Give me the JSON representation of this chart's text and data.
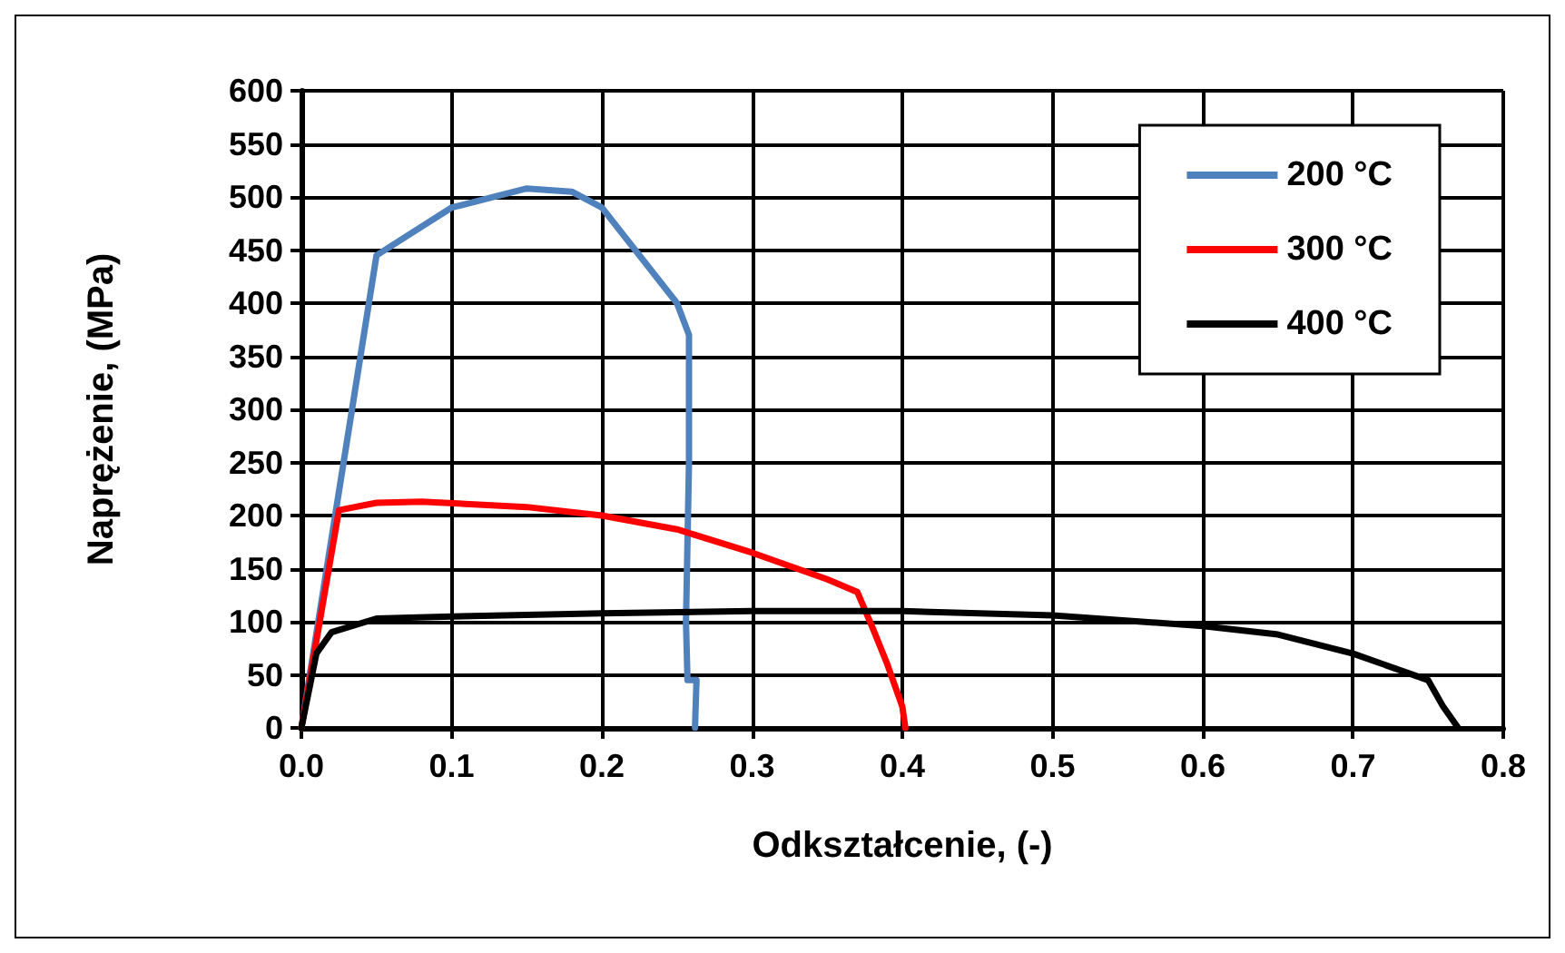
{
  "chart_data": {
    "type": "line",
    "xlabel": "Odkształcenie, (-)",
    "ylabel": "Naprężenie, (MPa)",
    "xlim": [
      0,
      0.8
    ],
    "xticks": [
      {
        "value": 0,
        "label": "0.0"
      },
      0.1,
      0.2,
      0.3,
      0.4,
      0.5,
      0.6,
      0.7,
      0.8
    ],
    "ylim": [
      0,
      600
    ],
    "yticks": [
      0,
      50,
      100,
      150,
      200,
      250,
      300,
      350,
      400,
      450,
      500,
      550,
      600
    ],
    "grid": true,
    "legend": "top right",
    "marker": "none",
    "line_style": "solid",
    "series": [
      {
        "name": "200 °C",
        "color": "#4f81bd",
        "x": [
          0,
          0.05,
          0.1,
          0.15,
          0.18,
          0.2,
          0.25,
          0.258,
          0.258,
          0.256,
          0.257,
          0.263,
          0.262
        ],
        "values": [
          0,
          445,
          490,
          508,
          505,
          490,
          400,
          370,
          250,
          100,
          45,
          45,
          0
        ]
      },
      {
        "name": "300 °C",
        "color": "#ff0000",
        "x": [
          0,
          0.025,
          0.05,
          0.08,
          0.15,
          0.2,
          0.25,
          0.3,
          0.35,
          0.37,
          0.38,
          0.39,
          0.4,
          0.402
        ],
        "values": [
          0,
          205,
          212,
          213,
          208,
          200,
          187,
          165,
          140,
          128,
          95,
          60,
          20,
          0
        ]
      },
      {
        "name": "400 °C",
        "color": "#000000",
        "x": [
          0,
          0.01,
          0.02,
          0.05,
          0.1,
          0.2,
          0.3,
          0.4,
          0.5,
          0.6,
          0.65,
          0.7,
          0.75,
          0.76,
          0.77
        ],
        "values": [
          0,
          70,
          90,
          103,
          105,
          108,
          110,
          110,
          106,
          96,
          88,
          70,
          45,
          20,
          0
        ]
      }
    ]
  }
}
